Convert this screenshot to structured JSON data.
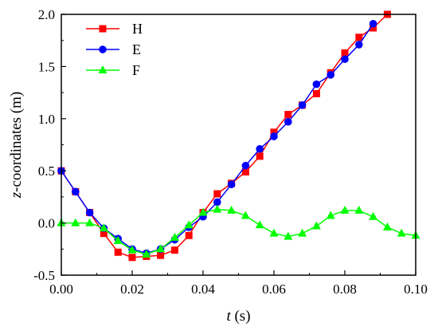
{
  "chart_data": {
    "type": "line",
    "xlabel_italic": "t",
    "xlabel_unit": " (s)",
    "ylabel_italic": "z",
    "ylabel_rest": "-coordinates (m)",
    "xlim": [
      0.0,
      0.1
    ],
    "ylim": [
      -0.5,
      2.0
    ],
    "x_ticks": [
      "0.00",
      "0.02",
      "0.04",
      "0.06",
      "0.08",
      "0.10"
    ],
    "x_tick_values": [
      0.0,
      0.02,
      0.04,
      0.06,
      0.08,
      0.1
    ],
    "y_ticks": [
      "-0.5",
      "0.0",
      "0.5",
      "1.0",
      "1.5",
      "2.0"
    ],
    "y_tick_values": [
      -0.5,
      0.0,
      0.5,
      1.0,
      1.5,
      2.0
    ],
    "grid": false,
    "legend_position": "top-left",
    "series": [
      {
        "name": "H",
        "color": "#ff0000",
        "marker": "square",
        "x": [
          0.0,
          0.004,
          0.008,
          0.012,
          0.016,
          0.02,
          0.024,
          0.028,
          0.032,
          0.036,
          0.04,
          0.044,
          0.048,
          0.052,
          0.056,
          0.06,
          0.064,
          0.068,
          0.072,
          0.076,
          0.08,
          0.084,
          0.088,
          0.092
        ],
        "y": [
          0.5,
          0.3,
          0.1,
          -0.1,
          -0.28,
          -0.33,
          -0.32,
          -0.31,
          -0.26,
          -0.12,
          0.1,
          0.28,
          0.38,
          0.49,
          0.64,
          0.87,
          1.04,
          1.13,
          1.24,
          1.44,
          1.63,
          1.78,
          1.87,
          2.0
        ]
      },
      {
        "name": "E",
        "color": "#0000ff",
        "marker": "circle",
        "x": [
          0.0,
          0.004,
          0.008,
          0.012,
          0.016,
          0.02,
          0.024,
          0.028,
          0.032,
          0.036,
          0.04,
          0.044,
          0.048,
          0.052,
          0.056,
          0.06,
          0.064,
          0.068,
          0.072,
          0.076,
          0.08,
          0.084,
          0.088
        ],
        "y": [
          0.5,
          0.3,
          0.1,
          -0.05,
          -0.15,
          -0.25,
          -0.29,
          -0.25,
          -0.16,
          -0.04,
          0.06,
          0.2,
          0.37,
          0.55,
          0.71,
          0.83,
          0.97,
          1.13,
          1.33,
          1.42,
          1.57,
          1.71,
          1.91
        ]
      },
      {
        "name": "F",
        "color": "#00ff00",
        "marker": "triangle",
        "x": [
          0.0,
          0.004,
          0.008,
          0.012,
          0.016,
          0.02,
          0.024,
          0.028,
          0.032,
          0.036,
          0.04,
          0.044,
          0.048,
          0.052,
          0.056,
          0.06,
          0.064,
          0.068,
          0.072,
          0.076,
          0.08,
          0.084,
          0.088,
          0.092,
          0.096,
          0.1
        ],
        "y": [
          0.0,
          0.0,
          0.0,
          -0.05,
          -0.17,
          -0.26,
          -0.3,
          -0.25,
          -0.14,
          -0.02,
          0.1,
          0.13,
          0.12,
          0.07,
          -0.02,
          -0.1,
          -0.13,
          -0.1,
          -0.03,
          0.07,
          0.12,
          0.12,
          0.06,
          -0.04,
          -0.1,
          -0.12
        ]
      }
    ]
  }
}
